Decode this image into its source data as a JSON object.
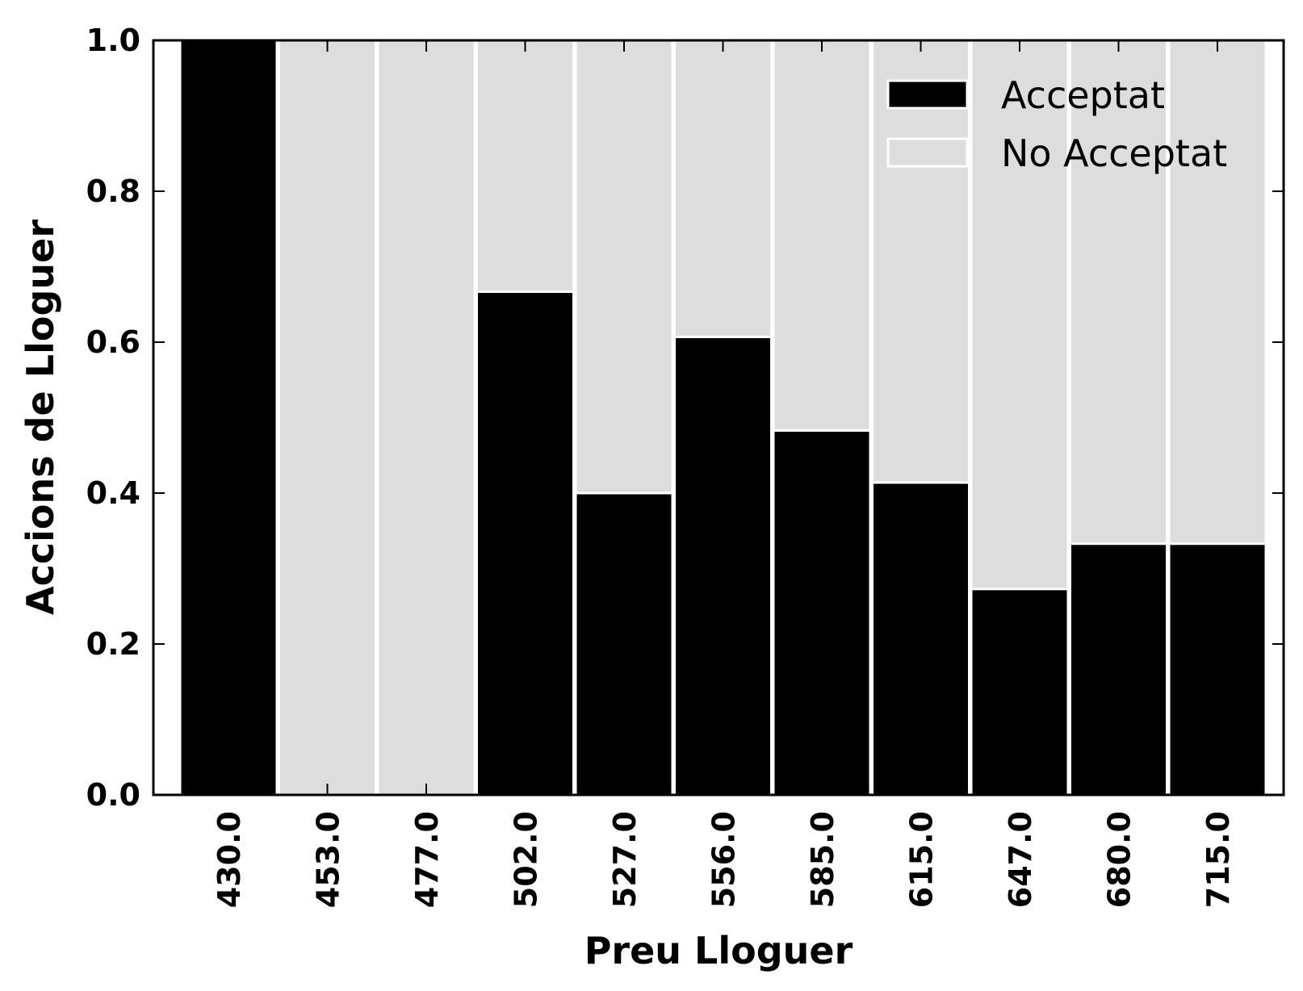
{
  "chart_data": {
    "type": "bar",
    "stacked": true,
    "normalized": true,
    "categories": [
      "430.0",
      "453.0",
      "477.0",
      "502.0",
      "527.0",
      "556.0",
      "585.0",
      "615.0",
      "647.0",
      "680.0",
      "715.0"
    ],
    "series": [
      {
        "name": "Acceptat",
        "color": "#000000",
        "values": [
          1.0,
          0.0,
          0.0,
          0.667,
          0.4,
          0.607,
          0.483,
          0.414,
          0.273,
          0.333,
          0.333
        ]
      },
      {
        "name": "No Acceptat",
        "color": "#dddddd",
        "values": [
          0.0,
          1.0,
          1.0,
          0.333,
          0.6,
          0.393,
          0.517,
          0.586,
          0.727,
          0.667,
          0.667
        ]
      }
    ],
    "xlabel": "Preu Lloguer",
    "ylabel": "Accions de Lloguer",
    "ylim": [
      0,
      1.0
    ],
    "yticks": [
      "0.0",
      "0.2",
      "0.4",
      "0.6",
      "0.8",
      "1.0"
    ],
    "grid": false,
    "legend_position": "top-right"
  }
}
